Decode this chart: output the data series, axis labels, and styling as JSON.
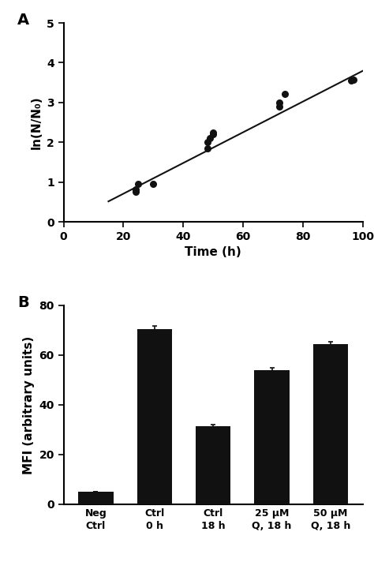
{
  "panel_A": {
    "scatter_x": [
      24,
      24,
      25,
      30,
      48,
      48,
      49,
      50,
      50,
      72,
      72,
      74,
      96,
      97
    ],
    "scatter_y": [
      0.75,
      0.82,
      0.95,
      0.95,
      1.85,
      2.0,
      2.1,
      2.2,
      2.25,
      2.9,
      3.0,
      3.22,
      3.55,
      3.58
    ],
    "line_x_start": 15,
    "line_x_end": 100,
    "line_slope": 0.0386,
    "line_intercept": -0.065,
    "xlabel": "Time (h)",
    "ylabel": "ln(N/N₀)",
    "xlim": [
      0,
      100
    ],
    "ylim": [
      0,
      5
    ],
    "xticks": [
      0,
      20,
      40,
      60,
      80,
      100
    ],
    "yticks": [
      0,
      1,
      2,
      3,
      4,
      5
    ],
    "label": "A"
  },
  "panel_B": {
    "categories": [
      "Neg\nCtrl",
      "Ctrl\n0 h",
      "Ctrl\n18 h",
      "25 μM\nQ, 18 h",
      "50 μM\nQ, 18 h"
    ],
    "values": [
      5.0,
      70.5,
      31.5,
      54.0,
      64.5
    ],
    "errors": [
      0.0,
      1.2,
      0.5,
      1.0,
      0.8
    ],
    "bar_color": "#111111",
    "ylabel": "MFI (arbitrary units)",
    "ylim": [
      0,
      80
    ],
    "yticks": [
      0,
      20,
      40,
      60,
      80
    ],
    "label": "B"
  },
  "background_color": "#ffffff",
  "text_color": "#000000",
  "scatter_color": "#111111",
  "line_color": "#111111"
}
